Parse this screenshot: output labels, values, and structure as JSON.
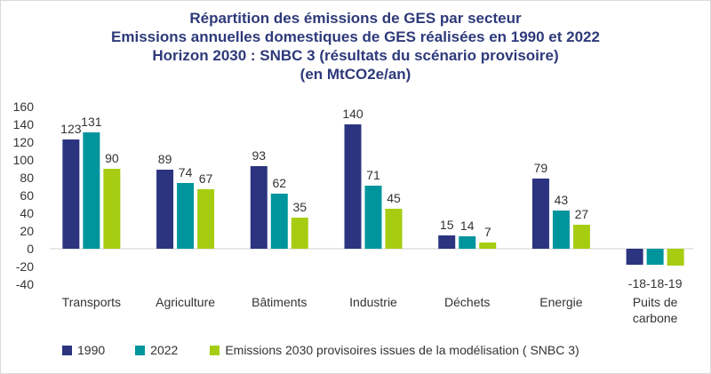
{
  "titles": [
    "Répartition des émissions de GES par secteur",
    "Emissions annuelles domestiques de GES réalisées en 1990 et 2022",
    "Horizon 2030 : SNBC 3 (résultats du scénario provisoire)",
    "(en MtCO2e/an)"
  ],
  "chart_data": {
    "type": "bar",
    "title": "Répartition des émissions de GES par secteur",
    "categories": [
      "Transports",
      "Agriculture",
      "Bâtiments",
      "Industrie",
      "Déchets",
      "Energie",
      "Puits de carbone"
    ],
    "series": [
      {
        "name": "1990",
        "color": "#2c3480",
        "values": [
          123,
          89,
          93,
          140,
          15,
          79,
          -18
        ]
      },
      {
        "name": "2022",
        "color": "#00959c",
        "values": [
          131,
          74,
          62,
          71,
          14,
          43,
          -18
        ]
      },
      {
        "name": "Emissions 2030 provisoires issues de la modélisation ( SNBC 3)",
        "color": "#a6cd12",
        "values": [
          90,
          67,
          35,
          45,
          7,
          27,
          -19
        ]
      }
    ],
    "ylim": [
      -40,
      160
    ],
    "yticks": [
      -40,
      -20,
      0,
      20,
      40,
      60,
      80,
      100,
      120,
      140,
      160
    ],
    "grid": false,
    "legend_position": "bottom"
  }
}
